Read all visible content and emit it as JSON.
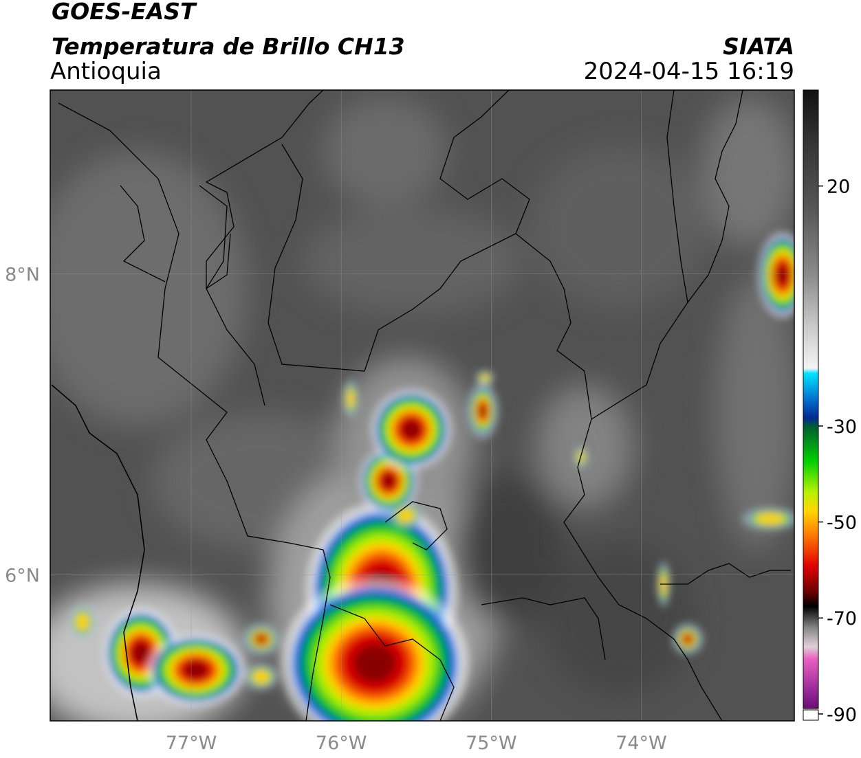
{
  "header": {
    "satellite": "GOES-EAST",
    "product": "Temperatura de Brillo CH13",
    "region": "Antioquia",
    "source": "SIATA",
    "datetime": "2024-04-15 16:19"
  },
  "map": {
    "lonlim": [
      -77.94,
      -72.98
    ],
    "latlim": [
      5.03,
      9.22
    ],
    "lonticks": [
      {
        "value": -77,
        "label": "77°W"
      },
      {
        "value": -76,
        "label": "76°W"
      },
      {
        "value": -75,
        "label": "75°W"
      },
      {
        "value": -74,
        "label": "74°W"
      }
    ],
    "latticks": [
      {
        "value": 8,
        "label": "8°N"
      },
      {
        "value": 6,
        "label": "6°N"
      }
    ]
  },
  "colorbar": {
    "lim": [
      -91.3,
      40
    ],
    "ticks": [
      20,
      -30,
      -50,
      -70,
      -90
    ]
  }
}
